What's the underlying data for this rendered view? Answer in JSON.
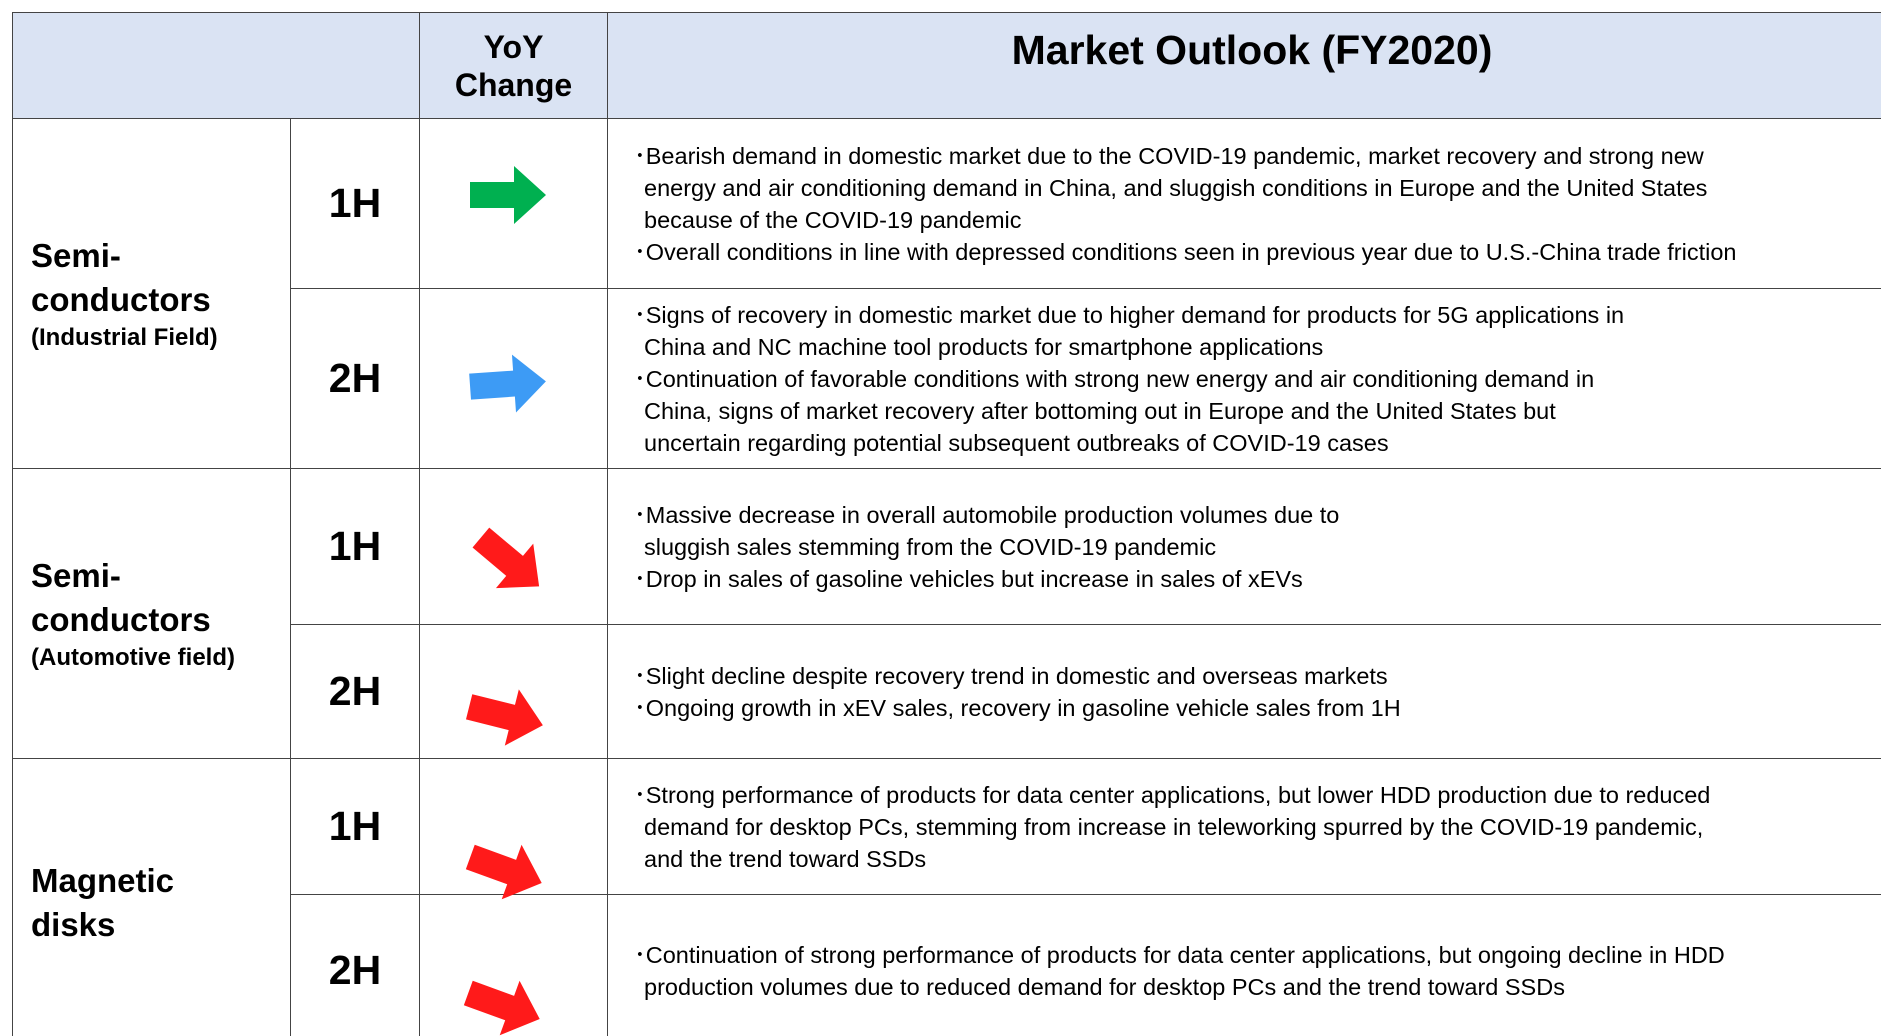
{
  "header": {
    "yoy": "YoY Change",
    "outlook": "Market Outlook (FY2020)"
  },
  "segments": [
    {
      "name_lines": [
        "Semi-",
        "conductors"
      ],
      "subtitle": "(Industrial Field)",
      "halves": [
        {
          "period": "1H",
          "bullets": [
            [
              "･Bearish demand in domestic market due to the COVID-19 pandemic, market recovery and strong new",
              "energy and air conditioning demand in China, and sluggish conditions in Europe and the United States",
              "because of the COVID-19 pandemic"
            ],
            [
              "･Overall conditions in line with depressed conditions seen in previous year due to U.S.-China trade friction"
            ]
          ]
        },
        {
          "period": "2H",
          "bullets": [
            [
              "･Signs of recovery in domestic market due to higher demand for products for 5G applications in",
              "China and NC machine tool products for smartphone applications"
            ],
            [
              "･Continuation of favorable conditions with strong new energy and air conditioning demand in",
              "China, signs of market recovery after bottoming out in Europe and the United States but",
              "uncertain regarding potential subsequent outbreaks of COVID-19 cases"
            ]
          ]
        }
      ]
    },
    {
      "name_lines": [
        "Semi-",
        "conductors"
      ],
      "subtitle": "(Automotive field)",
      "halves": [
        {
          "period": "1H",
          "bullets": [
            [
              "･Massive decrease in overall automobile production volumes due to",
              "sluggish sales stemming from the COVID-19 pandemic"
            ],
            [
              "･Drop in sales of gasoline vehicles but increase in sales of xEVs"
            ]
          ]
        },
        {
          "period": "2H",
          "bullets": [
            [
              "･Slight decline despite recovery trend in domestic and overseas markets"
            ],
            [
              "･Ongoing growth in xEV sales, recovery in gasoline vehicle sales from 1H"
            ]
          ]
        }
      ]
    },
    {
      "name_lines": [
        "Magnetic",
        "disks"
      ],
      "halves": [
        {
          "period": "1H",
          "bullets": [
            [
              "･Strong performance of products for data center applications, but lower HDD production due to reduced",
              "demand for desktop PCs, stemming from increase in teleworking spurred by the COVID-19 pandemic,",
              "and the trend toward SSDs"
            ]
          ]
        },
        {
          "period": "2H",
          "bullets": [
            [
              "･Continuation of strong performance of products for data center applications, but ongoing decline in HDD",
              "production volumes due to reduced demand for desktop PCs and the trend toward SSDs"
            ]
          ]
        }
      ]
    }
  ]
}
